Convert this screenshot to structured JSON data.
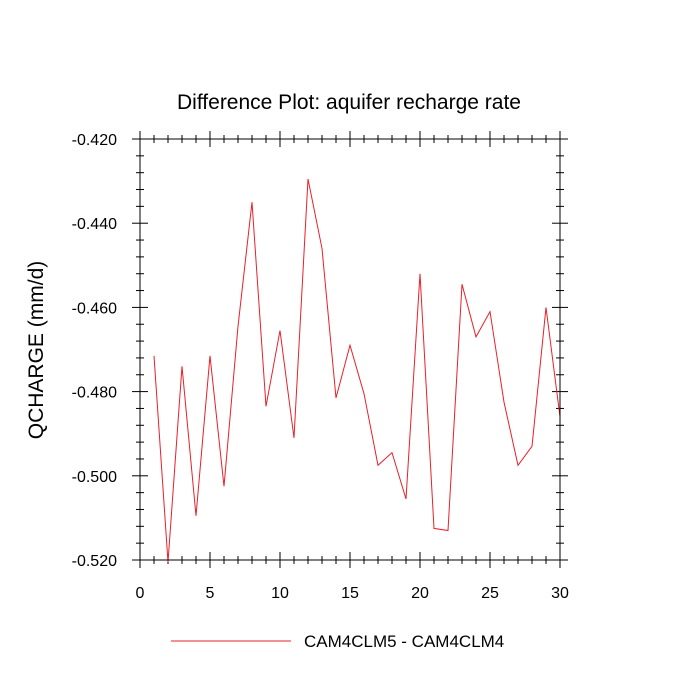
{
  "chart_data": {
    "type": "line",
    "title": "Difference Plot: aquifer recharge rate",
    "xlabel": "",
    "ylabel": "QCHARGE  (mm/d)",
    "xlim": [
      0,
      30
    ],
    "ylim": [
      -0.52,
      -0.42
    ],
    "x_ticks": [
      0,
      5,
      10,
      15,
      20,
      25,
      30
    ],
    "x_tick_labels": [
      "0",
      "5",
      "10",
      "15",
      "20",
      "25",
      "30"
    ],
    "y_ticks": [
      -0.52,
      -0.5,
      -0.48,
      -0.46,
      -0.44,
      -0.42
    ],
    "y_tick_labels": [
      "-0.520",
      "-0.500",
      "-0.480",
      "-0.460",
      "-0.440",
      "-0.420"
    ],
    "grid": false,
    "legend_position": "bottom",
    "series": [
      {
        "name": "CAM4CLM5 - CAM4CLM4",
        "color": "#e8202a",
        "x": [
          1,
          2,
          3,
          4,
          5,
          6,
          7,
          8,
          9,
          10,
          11,
          12,
          13,
          14,
          15,
          16,
          17,
          18,
          19,
          20,
          21,
          22,
          23,
          24,
          25,
          26,
          27,
          28,
          29,
          30
        ],
        "y": [
          -0.4715,
          -0.5205,
          -0.474,
          -0.5095,
          -0.4715,
          -0.5025,
          -0.4645,
          -0.435,
          -0.4835,
          -0.4655,
          -0.491,
          -0.4295,
          -0.446,
          -0.4815,
          -0.469,
          -0.4805,
          -0.4975,
          -0.4945,
          -0.5055,
          -0.452,
          -0.5125,
          -0.513,
          -0.4545,
          -0.467,
          -0.461,
          -0.4825,
          -0.4975,
          -0.493,
          -0.46,
          -0.486
        ]
      }
    ]
  }
}
